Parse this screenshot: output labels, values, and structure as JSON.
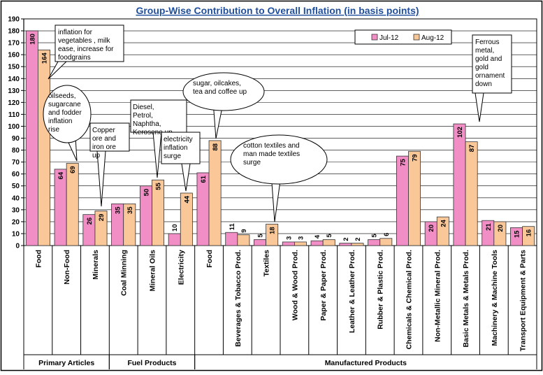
{
  "chart_data": {
    "type": "bar",
    "title": "Group-Wise Contribution to Overall Inflation (in basis points)",
    "xlabel": "",
    "ylabel": "",
    "ylim": [
      0,
      190
    ],
    "yticks": [
      0,
      10,
      20,
      30,
      40,
      50,
      60,
      70,
      80,
      90,
      100,
      110,
      120,
      130,
      140,
      150,
      160,
      170,
      180,
      190
    ],
    "grid": true,
    "legend_position": "top-right",
    "categories": [
      "Food",
      "Non-Food",
      "Minerals",
      "Coal Minning",
      "Mineral Oils",
      "Electricity",
      "Food",
      "Beverages & Tobacco Prod.",
      "Textiles",
      "Wood & Wood Prod.",
      "Paper & Paper Prod.",
      "Leather & Leather Prod.",
      "Rubber & Plastic Prod.",
      "Chemicals & Chemical Prod.",
      "Non-Metallic Mineral Prod.",
      "Basic Metals & Metals Prod.",
      "Machinery & Machine Tools",
      "Transport Equipment & Parts"
    ],
    "groups": [
      {
        "name": "Primary Articles",
        "start": 0,
        "end": 2
      },
      {
        "name": "Fuel Products",
        "start": 3,
        "end": 5
      },
      {
        "name": "Manufactured Products",
        "start": 6,
        "end": 17
      }
    ],
    "series": [
      {
        "name": "Jul-12",
        "color": "#f28ec6",
        "values": [
          180,
          64,
          26,
          35,
          50,
          10,
          61,
          11,
          5,
          3,
          4,
          2,
          5,
          75,
          20,
          102,
          21,
          15
        ]
      },
      {
        "name": "Aug-12",
        "color": "#fac898",
        "values": [
          164,
          69,
          29,
          35,
          55,
          44,
          88,
          9,
          18,
          3,
          5,
          2,
          6,
          79,
          24,
          87,
          20,
          16
        ]
      }
    ],
    "data_labels": {
      "Jul-12": [
        "180",
        "64",
        "26",
        "35",
        "50",
        "10",
        "61",
        "11",
        "5",
        "3",
        "4",
        "2",
        "5",
        "75",
        "20",
        "102",
        "21",
        "15"
      ],
      "Aug-12": [
        "164",
        "69",
        "29",
        "35",
        "55",
        "44",
        "88",
        "9",
        "18",
        "3",
        "5",
        "2",
        "6",
        "79",
        "24",
        "87",
        "20",
        "16"
      ]
    },
    "annotations": [
      {
        "text": "inflation for vegetables , milk ease, increase for foodgrains",
        "category": 0,
        "series": "Aug-12"
      },
      {
        "text": "oilseeds, sugarcane and fodder inflation rise",
        "category": 1,
        "series": "Aug-12"
      },
      {
        "text": "Copper ore and iron ore up",
        "category": 2,
        "series": "Aug-12"
      },
      {
        "text": "Diesel, Petrol, Naphtha, Kerosene up",
        "category": 4,
        "series": "Aug-12"
      },
      {
        "text": "electricity inflation surge",
        "category": 5,
        "series": "Aug-12"
      },
      {
        "text": "sugar, oilcakes, tea and coffee up",
        "category": 6,
        "series": "Aug-12"
      },
      {
        "text": "cotton textiles and man made textiles surge",
        "category": 8,
        "series": "Aug-12"
      },
      {
        "text": "Ferrous metal, gold and gold ornament down",
        "category": 15,
        "series": "Aug-12"
      }
    ],
    "colors": {
      "title": "#1f4e9c",
      "jul_bar": "#f28ec6",
      "aug_bar": "#fac898",
      "bar_stroke": "#333333",
      "grid": "#000000",
      "frame": "#000000"
    }
  }
}
